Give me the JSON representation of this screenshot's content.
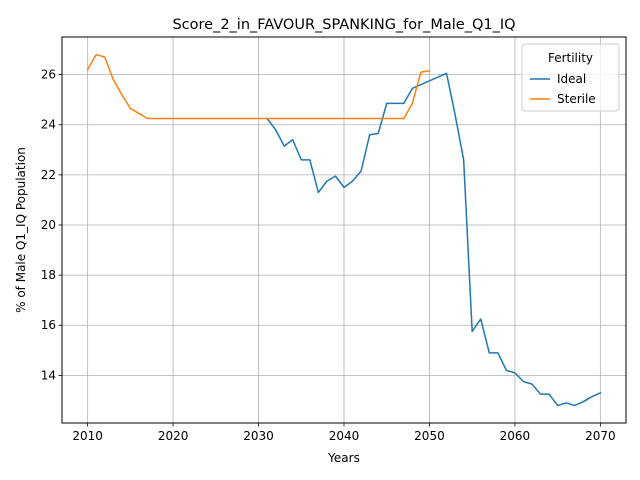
{
  "chart_data": {
    "type": "line",
    "title": "Score_2_in_FAVOUR_SPANKING_for_Male_Q1_IQ",
    "xlabel": "Years",
    "ylabel": "% of Male Q1_IQ Population",
    "xlim": [
      2007,
      2073
    ],
    "ylim": [
      12.1,
      27.5
    ],
    "x_ticks": [
      2010,
      2020,
      2030,
      2040,
      2050,
      2060,
      2070
    ],
    "y_ticks": [
      14,
      16,
      18,
      20,
      22,
      24,
      26
    ],
    "grid": true,
    "legend": {
      "title": "Fertility",
      "placement": "top-right"
    },
    "series": [
      {
        "name": "Ideal",
        "color": "#1f77b4",
        "points": [
          [
            2031,
            24.25
          ],
          [
            2032,
            23.8
          ],
          [
            2033,
            23.15
          ],
          [
            2034,
            23.4
          ],
          [
            2035,
            22.6
          ],
          [
            2036,
            22.6
          ],
          [
            2037,
            21.3
          ],
          [
            2038,
            21.75
          ],
          [
            2039,
            21.95
          ],
          [
            2040,
            21.5
          ],
          [
            2041,
            21.75
          ],
          [
            2042,
            22.15
          ],
          [
            2043,
            23.6
          ],
          [
            2044,
            23.65
          ],
          [
            2045,
            24.85
          ],
          [
            2046,
            24.85
          ],
          [
            2047,
            24.85
          ],
          [
            2048,
            25.45
          ],
          [
            2049,
            25.6
          ],
          [
            2050,
            25.75
          ],
          [
            2051,
            25.9
          ],
          [
            2052,
            26.05
          ],
          [
            2053,
            24.4
          ],
          [
            2054,
            22.6
          ],
          [
            2055,
            15.75
          ],
          [
            2056,
            16.25
          ],
          [
            2057,
            14.9
          ],
          [
            2058,
            14.9
          ],
          [
            2059,
            14.2
          ],
          [
            2060,
            14.1
          ],
          [
            2061,
            13.75
          ],
          [
            2062,
            13.65
          ],
          [
            2063,
            13.25
          ],
          [
            2064,
            13.25
          ],
          [
            2065,
            12.8
          ],
          [
            2066,
            12.9
          ],
          [
            2067,
            12.8
          ],
          [
            2068,
            12.95
          ],
          [
            2069,
            13.15
          ],
          [
            2070,
            13.3
          ]
        ]
      },
      {
        "name": "Sterile",
        "color": "#ff7f0e",
        "points": [
          [
            2010,
            26.2
          ],
          [
            2011,
            26.8
          ],
          [
            2012,
            26.7
          ],
          [
            2013,
            25.8
          ],
          [
            2014,
            25.2
          ],
          [
            2015,
            24.65
          ],
          [
            2016,
            24.45
          ],
          [
            2017,
            24.25
          ],
          [
            2018,
            24.25
          ],
          [
            2019,
            24.25
          ],
          [
            2020,
            24.25
          ],
          [
            2025,
            24.25
          ],
          [
            2030,
            24.25
          ],
          [
            2035,
            24.25
          ],
          [
            2040,
            24.25
          ],
          [
            2045,
            24.25
          ],
          [
            2046,
            24.25
          ],
          [
            2047,
            24.25
          ],
          [
            2048,
            24.85
          ],
          [
            2049,
            26.1
          ],
          [
            2050,
            26.15
          ]
        ]
      }
    ]
  }
}
